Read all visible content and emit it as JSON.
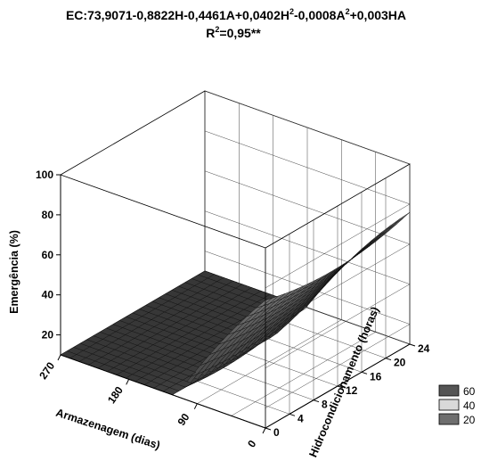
{
  "chart_data": {
    "type": "surface",
    "equation_prefix": "EC:73,9071-0,8822H-0,4461A+0,0402H",
    "equation_mid": "-0,0008A",
    "equation_suffix": "+0,003HA",
    "equation_exp_1": "2",
    "equation_exp_2": "2",
    "r2_prefix": "R",
    "r2_exp": "2",
    "r2_suffix": "=0,95**",
    "zlabel": "Emergência (%)",
    "xlabel": "Armazenagem (dias)",
    "ylabel": "Hidrocondicionamento (horas)",
    "x_ticks": [
      "270",
      "180",
      "90",
      "0"
    ],
    "y_ticks": [
      "0",
      "4",
      "8",
      "12",
      "16",
      "20",
      "24"
    ],
    "z_ticks": [
      "20",
      "40",
      "60",
      "80",
      "100"
    ],
    "xlim": [
      0,
      270
    ],
    "ylim": [
      0,
      24
    ],
    "zlim": [
      10,
      100
    ],
    "coefficients": {
      "b0": 73.9071,
      "bH": -0.8822,
      "bA": -0.4461,
      "bH2": 0.0402,
      "bA2": -0.0008,
      "bHA": 0.003
    },
    "legend": [
      {
        "label": "60",
        "color": "#555555"
      },
      {
        "label": "40",
        "color": "#d9d9d9"
      },
      {
        "label": "20",
        "color": "#6e6e6e"
      }
    ],
    "legend_position": "bottom-right",
    "grid": true
  }
}
